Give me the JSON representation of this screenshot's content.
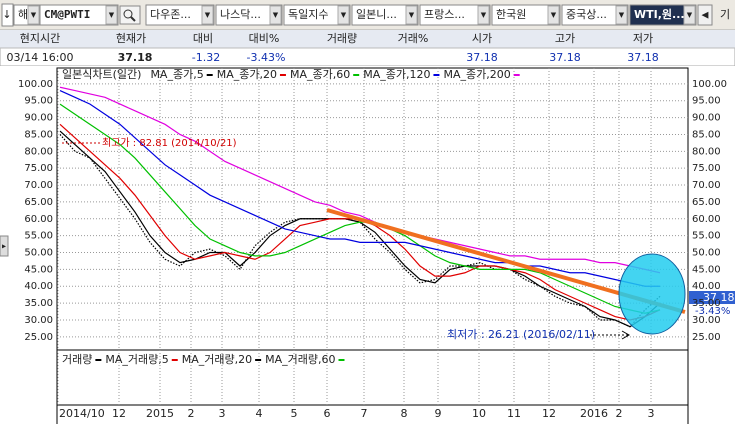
{
  "toolbar": {
    "items": [
      "해",
      "CM@PWTI",
      "다우존...",
      "나스닥...",
      "독일지수",
      "일본니...",
      "프랑스...",
      "한국원",
      "중국상...",
      "WTI,원...",
      "기"
    ]
  },
  "quote": {
    "headers": [
      "현지시간",
      "현재가",
      "대비",
      "대비%",
      "거래량",
      "거래%",
      "시가",
      "고가",
      "저가"
    ],
    "time": "03/14  16:00",
    "current": "37.18",
    "change": "-1.32",
    "change_pct": "-3.43%",
    "open": "37.18",
    "high": "37.18",
    "low": "37.18"
  },
  "chart_data": {
    "type": "line",
    "ylim": [
      21.1,
      104.7
    ],
    "yticks": [
      {
        "value": 25,
        "label": "25.00"
      },
      {
        "value": 30,
        "label": "30.00"
      },
      {
        "value": 35,
        "label": "35.00"
      },
      {
        "value": 40,
        "label": "40.00"
      },
      {
        "value": 45,
        "label": "45.00"
      },
      {
        "value": 50,
        "label": "50.00"
      },
      {
        "value": 55,
        "label": "55.00"
      },
      {
        "value": 60,
        "label": "60.00"
      },
      {
        "value": 65,
        "label": "65.00"
      },
      {
        "value": 70,
        "label": "70.00"
      },
      {
        "value": 75,
        "label": "75.00"
      },
      {
        "value": 80,
        "label": "80.00"
      },
      {
        "value": 85,
        "label": "85.00"
      },
      {
        "value": 90,
        "label": "90.00"
      },
      {
        "value": 95,
        "label": "95.00"
      },
      {
        "value": 100,
        "label": "100.00"
      }
    ],
    "grid": true,
    "x_labels": [
      "2014/10",
      "12",
      "2015",
      "2",
      "3",
      "4",
      "5",
      "6",
      "7",
      "8",
      "9",
      "10",
      "11",
      "12",
      "2016",
      "2",
      "3"
    ],
    "series": [
      {
        "name": "일본식차트(일간)",
        "color": "#000000",
        "values": [
          85,
          80,
          78,
          72,
          66,
          60,
          53,
          48,
          46,
          50,
          51,
          49,
          45,
          52,
          56,
          59,
          60,
          60,
          60,
          60,
          59,
          54,
          50,
          45,
          41,
          42,
          46,
          46,
          47,
          45,
          45,
          42,
          40,
          37,
          35,
          34,
          30,
          30,
          28,
          33,
          37
        ]
      },
      {
        "name": "MA_종가,5",
        "color": "#000000",
        "values": [
          86,
          82,
          78,
          74,
          68,
          62,
          55,
          50,
          47,
          48,
          50,
          50,
          46,
          50,
          55,
          58,
          60,
          60,
          60,
          60,
          59,
          56,
          51,
          46,
          42,
          41,
          45,
          46,
          46,
          46,
          45,
          43,
          40,
          38,
          36,
          34,
          31,
          30,
          28,
          31,
          35
        ]
      },
      {
        "name": "MA_종가,20",
        "color": "#e00000",
        "values": [
          88,
          84,
          80,
          76,
          72,
          67,
          61,
          55,
          50,
          48,
          49,
          50,
          49,
          48,
          50,
          54,
          58,
          59,
          60,
          60,
          60,
          58,
          55,
          51,
          46,
          43,
          43,
          44,
          46,
          46,
          45,
          44,
          42,
          39,
          37,
          35,
          33,
          31,
          30,
          31,
          33
        ]
      },
      {
        "name": "MA_종가,60",
        "color": "#00c000",
        "values": [
          94,
          91,
          88,
          85,
          82,
          78,
          73,
          68,
          63,
          58,
          54,
          52,
          50,
          49,
          49,
          50,
          52,
          54,
          56,
          58,
          59,
          59,
          57,
          55,
          52,
          49,
          47,
          46,
          45,
          45,
          45,
          45,
          44,
          42,
          40,
          38,
          36,
          34,
          33,
          32,
          33
        ]
      },
      {
        "name": "MA_종가,120",
        "color": "#0000e0",
        "values": [
          98,
          96,
          94,
          91,
          88,
          84,
          80,
          76,
          73,
          70,
          67,
          65,
          63,
          61,
          59,
          57,
          56,
          55,
          54,
          54,
          53,
          53,
          53,
          53,
          52,
          51,
          50,
          49,
          48,
          47,
          47,
          46,
          46,
          45,
          44,
          44,
          43,
          42,
          41,
          40,
          40
        ]
      },
      {
        "name": "MA_종가,200",
        "color": "#e000e0",
        "values": [
          99,
          98,
          97,
          96,
          94,
          92,
          90,
          88,
          85,
          83,
          80,
          77,
          75,
          73,
          71,
          69,
          67,
          65,
          64,
          62,
          61,
          59,
          57,
          56,
          55,
          54,
          53,
          52,
          51,
          50,
          49,
          49,
          48,
          48,
          48,
          48,
          47,
          47,
          46,
          45,
          44
        ]
      }
    ],
    "annotations": [
      "최고가 : 82.81 (2014/10/21)",
      "최저가 : 26.21 (2016/02/11)"
    ],
    "volume_legend": [
      {
        "name": "거래량",
        "color": "#000000"
      },
      {
        "name": "MA_거래량,5",
        "color": "#e00000"
      },
      {
        "name": "MA_거래량,20",
        "color": "#000000"
      },
      {
        "name": "MA_거래량,60",
        "color": "#00c000"
      }
    ]
  }
}
